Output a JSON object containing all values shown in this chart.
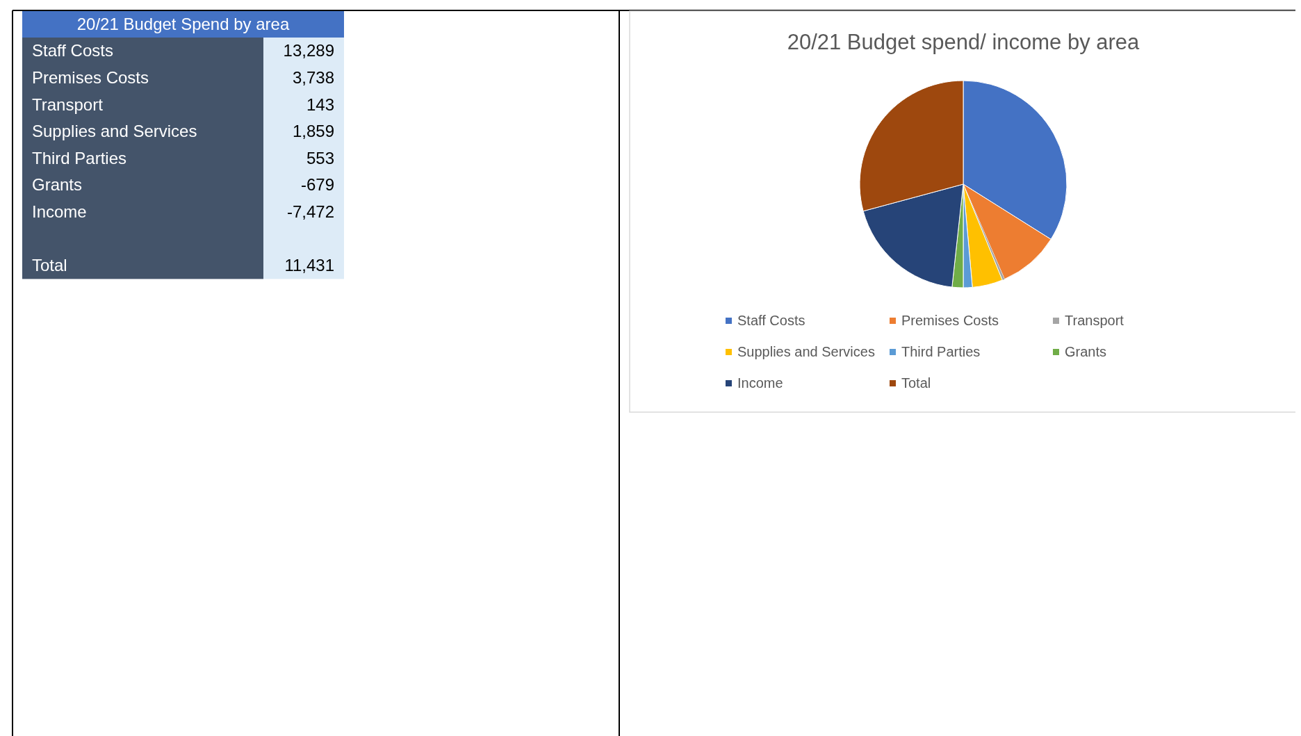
{
  "chart_data": [
    {
      "type": "other",
      "title": "20/21 Budget Spend by area",
      "categories": [
        "Staff Costs",
        "Premises Costs",
        "Transport",
        "Supplies and Services",
        "Third Parties",
        "Grants",
        "Income",
        null,
        "Total"
      ],
      "values": [
        13289,
        3738,
        143,
        1859,
        553,
        -679,
        -7472,
        null,
        11431
      ],
      "value_labels": [
        "13,289",
        "3,738",
        "143",
        "1,859",
        "553",
        "-679",
        "-7,472",
        null,
        "11,431"
      ]
    },
    {
      "type": "pie",
      "title": "20/21 Budget spend/ income by area",
      "categories": [
        "Staff Costs",
        "Premises Costs",
        "Transport",
        "Supplies and Services",
        "Third Parties",
        "Grants",
        "Income",
        "Total"
      ],
      "values": [
        33.93,
        9.54,
        0.37,
        4.75,
        1.41,
        1.73,
        19.08,
        29.19
      ],
      "colors": [
        "#4472c4",
        "#ed7d31",
        "#a5a5a5",
        "#ffc000",
        "#5b9bd5",
        "#70ad47",
        "#264478",
        "#9e480e"
      ],
      "legend": "bottom"
    }
  ]
}
